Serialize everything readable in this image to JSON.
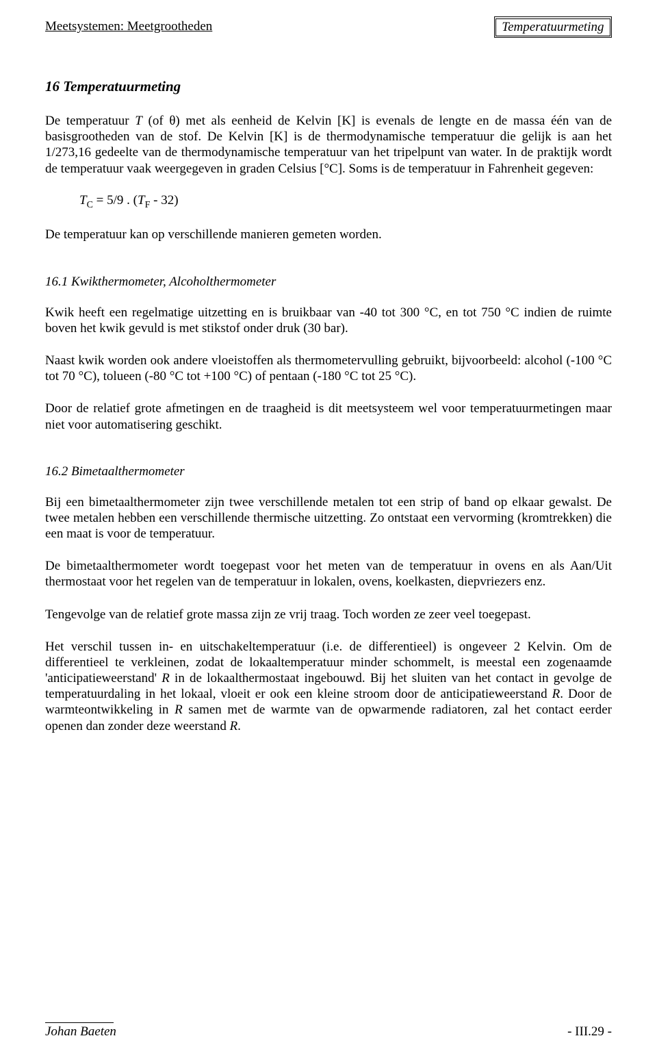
{
  "header": {
    "left": "Meetsystemen: Meetgrootheden",
    "right": "Temperatuurmeting"
  },
  "title": "16 Temperatuurmeting",
  "intro_p1": "De temperatuur T (of θ) met als eenheid de Kelvin [K] is evenals de lengte en de massa één van de basisgrootheden van de stof. De Kelvin [K] is de thermodynamische temperatuur die gelijk is aan het 1/273,16 gedeelte van de thermodynamische temperatuur van het tripelpunt van water. In de praktijk wordt de temperatuur vaak weergegeven in graden Celsius [°C]. Soms is de temperatuur in Fahrenheit gegeven:",
  "formula": "T_C = 5/9 . (T_F - 32)",
  "intro_p2": "De temperatuur kan op verschillende manieren gemeten worden.",
  "sec161_head": "16.1 Kwikthermometer, Alcoholthermometer",
  "sec161_p1": "Kwik heeft een regelmatige uitzetting en is bruikbaar van -40 tot 300 °C, en tot 750 °C indien de ruimte boven het kwik gevuld is met stikstof onder druk (30 bar).",
  "sec161_p2": "Naast kwik worden ook andere vloeistoffen als thermometervulling gebruikt, bijvoorbeeld: alcohol (-100 °C tot 70 °C), tolueen (-80 °C tot +100 °C) of pentaan (-180 °C tot 25 °C).",
  "sec161_p3": "Door de relatief grote afmetingen en de traagheid is dit meetsysteem wel voor temperatuurmetingen maar niet voor automatisering geschikt.",
  "sec162_head": "16.2 Bimetaalthermometer",
  "sec162_p1": "Bij een bimetaalthermometer zijn twee verschillende metalen tot een strip of band op elkaar gewalst. De twee metalen hebben een verschillende thermische uitzetting. Zo ontstaat een vervorming (kromtrekken) die een maat is voor de temperatuur.",
  "sec162_p2": "De bimetaalthermometer wordt toegepast voor het meten van de temperatuur in ovens en als Aan/Uit thermostaat voor het regelen van de temperatuur in lokalen, ovens, koelkasten, diepvriezers enz.",
  "sec162_p3": "Tengevolge van de relatief grote massa zijn ze vrij traag. Toch worden ze zeer veel toegepast.",
  "sec162_p4": "Het verschil tussen in- en uitschakeltemperatuur (i.e. de differentieel) is ongeveer 2 Kelvin. Om de differentieel te verkleinen, zodat de lokaaltemperatuur minder schommelt, is meestal een zogenaamde 'anticipatieweerstand' R in de lokaalthermostaat ingebouwd. Bij het sluiten van het contact in gevolge de temperatuurdaling in het lokaal, vloeit er ook een kleine stroom door de anticipatieweerstand R. Door de warmteontwikkeling in R samen met de warmte van de opwarmende radiatoren, zal het contact eerder openen dan zonder deze weerstand R.",
  "footer": {
    "author": "Johan Baeten",
    "page": "- III.29 -"
  }
}
